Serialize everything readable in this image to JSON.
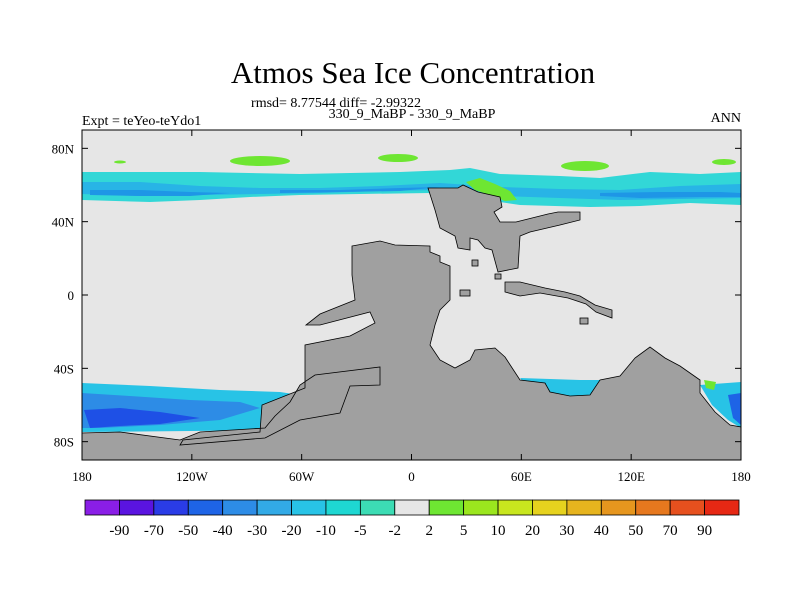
{
  "chart_data": {
    "type": "heatmap",
    "title": "Atmos Sea Ice Concentration",
    "stats": "rmsd= 8.77544 diff= -2.99322",
    "left_label": "Expt = teYeo-teYdo1",
    "center_label": "330_9_MaBP - 330_9_MaBP",
    "right_label": "ANN",
    "projection": "cylindrical equidistant",
    "lon_range": [
      -180,
      180
    ],
    "lat_range": [
      -90,
      90
    ],
    "x_ticks": [
      {
        "value": -180,
        "label": "180"
      },
      {
        "value": -120,
        "label": "120W"
      },
      {
        "value": -60,
        "label": "60W"
      },
      {
        "value": 0,
        "label": "0"
      },
      {
        "value": 60,
        "label": "60E"
      },
      {
        "value": 120,
        "label": "120E"
      },
      {
        "value": 180,
        "label": "180"
      }
    ],
    "y_ticks": [
      {
        "value": 80,
        "label": "80N"
      },
      {
        "value": 40,
        "label": "40N"
      },
      {
        "value": 0,
        "label": "0"
      },
      {
        "value": -40,
        "label": "40S"
      },
      {
        "value": -80,
        "label": "80S"
      }
    ],
    "colorbar": {
      "labels": [
        "-90",
        "-70",
        "-50",
        "-40",
        "-30",
        "-20",
        "-10",
        "-5",
        "-2",
        "2",
        "5",
        "10",
        "20",
        "30",
        "40",
        "50",
        "70",
        "90"
      ],
      "colors": [
        "#8a1ee6",
        "#5a14e0",
        "#2a3ce6",
        "#1e64e6",
        "#2d8ce6",
        "#32aae6",
        "#28c3e6",
        "#1ed7d2",
        "#3cdcb4",
        "#e6e6e6",
        "#6ee632",
        "#9be61e",
        "#c8e61e",
        "#e6d21e",
        "#e6b41e",
        "#e6961e",
        "#e6781e",
        "#e6501e",
        "#e62814"
      ]
    },
    "colors": {
      "land": "#a0a0a0",
      "no_change": "#e6e6e6",
      "north_band_light": "#32d7d7",
      "north_band_mid": "#28b4e6",
      "north_band_dark": "#1e96e6",
      "south_ice_dark": "#1e50e6",
      "south_ice_mid": "#2d8ce6",
      "south_ice_light": "#28c3e6",
      "positive_patch": "#6ee632"
    }
  }
}
